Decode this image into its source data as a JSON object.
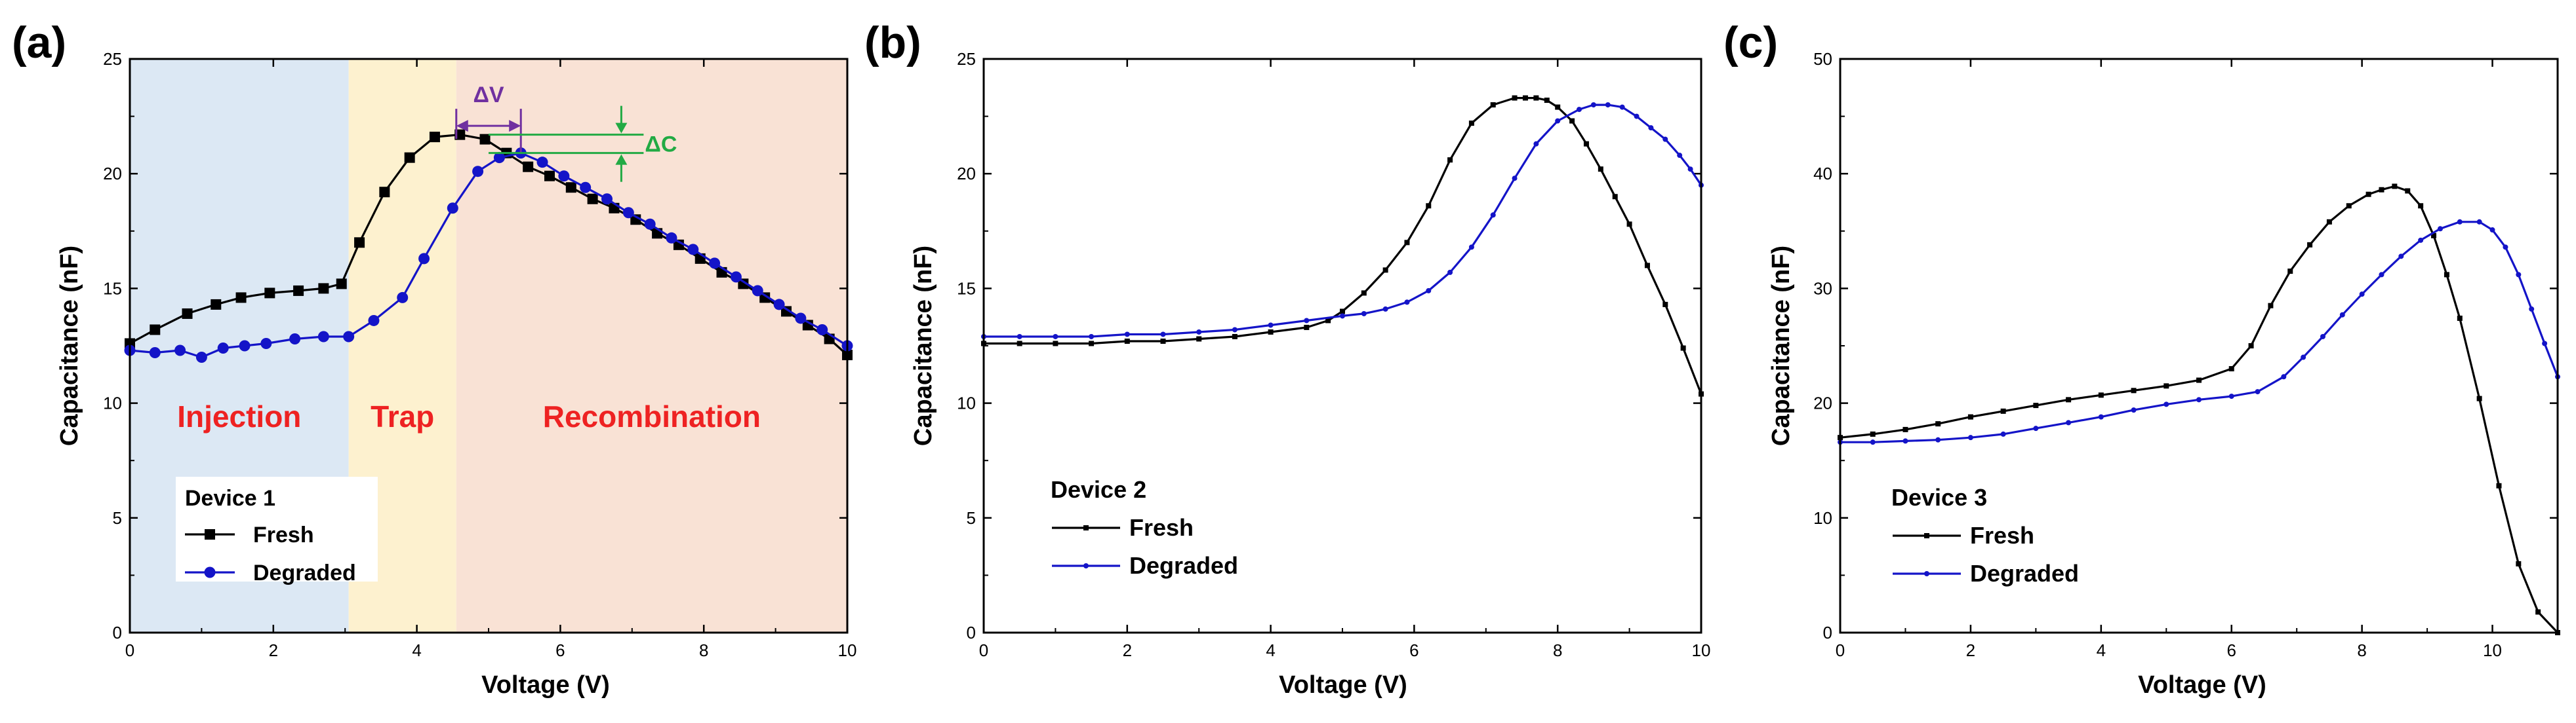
{
  "colors": {
    "fresh": "#000000",
    "degraded": "#1414c8",
    "injection_region": "#dce8f4",
    "trap_region": "#fdf1cf",
    "recombination_region": "#f9e2d5",
    "region_text": "#ee2222",
    "delta_v": "#7030a0",
    "delta_c": "#22aa44"
  },
  "chart_data": [
    {
      "panel": "(a)",
      "type": "line",
      "xlabel": "Voltage (V)",
      "ylabel": "Capacitance (nF)",
      "xlim": [
        0,
        10
      ],
      "ylim": [
        0,
        25
      ],
      "xticks": [
        0,
        2,
        4,
        6,
        8,
        10
      ],
      "yticks": [
        0,
        5,
        10,
        15,
        20,
        25
      ],
      "legend_title": "Device 1",
      "legend_position": "bottom-left",
      "regions": [
        {
          "label": "Injection",
          "x_start": 0,
          "x_end": 3.05
        },
        {
          "label": "Trap",
          "x_start": 3.05,
          "x_end": 4.55
        },
        {
          "label": "Recombination",
          "x_start": 4.55,
          "x_end": 10
        }
      ],
      "annotations": [
        {
          "label": "ΔV",
          "x_start": 4.55,
          "x_end": 5.45,
          "y": 22.2
        },
        {
          "label": "ΔC",
          "x": 6.85,
          "y_start": 20.9,
          "y_end": 21.7
        }
      ],
      "series": [
        {
          "name": "Fresh",
          "marker": "square",
          "x": [
            0,
            0.35,
            0.8,
            1.2,
            1.55,
            1.95,
            2.35,
            2.7,
            2.95,
            3.2,
            3.55,
            3.9,
            4.25,
            4.6,
            4.95,
            5.25,
            5.55,
            5.85,
            6.15,
            6.45,
            6.75,
            7.05,
            7.35,
            7.65,
            7.95,
            8.25,
            8.55,
            8.85,
            9.15,
            9.45,
            9.75,
            10
          ],
          "y": [
            12.6,
            13.2,
            13.9,
            14.3,
            14.6,
            14.8,
            14.9,
            15.0,
            15.2,
            17.0,
            19.2,
            20.7,
            21.6,
            21.7,
            21.5,
            20.9,
            20.3,
            19.9,
            19.4,
            18.9,
            18.5,
            18.0,
            17.4,
            16.9,
            16.3,
            15.7,
            15.2,
            14.6,
            14.0,
            13.4,
            12.8,
            12.1
          ]
        },
        {
          "name": "Degraded",
          "marker": "circle",
          "x": [
            0,
            0.35,
            0.7,
            1.0,
            1.3,
            1.6,
            1.9,
            2.3,
            2.7,
            3.05,
            3.4,
            3.8,
            4.1,
            4.5,
            4.85,
            5.15,
            5.45,
            5.75,
            6.05,
            6.35,
            6.65,
            6.95,
            7.25,
            7.55,
            7.85,
            8.15,
            8.45,
            8.75,
            9.05,
            9.35,
            9.65,
            10
          ],
          "y": [
            12.3,
            12.2,
            12.3,
            12.0,
            12.4,
            12.5,
            12.6,
            12.8,
            12.9,
            12.9,
            13.6,
            14.6,
            16.3,
            18.5,
            20.1,
            20.7,
            20.9,
            20.5,
            19.9,
            19.4,
            18.9,
            18.3,
            17.8,
            17.2,
            16.7,
            16.1,
            15.5,
            14.9,
            14.3,
            13.7,
            13.2,
            12.5
          ]
        }
      ]
    },
    {
      "panel": "(b)",
      "type": "line",
      "xlabel": "Voltage (V)",
      "ylabel": "Capacitance (nF)",
      "xlim": [
        0,
        10
      ],
      "ylim": [
        0,
        25
      ],
      "xticks": [
        0,
        2,
        4,
        6,
        8,
        10
      ],
      "yticks": [
        0,
        5,
        10,
        15,
        20,
        25
      ],
      "legend_title": "Device 2",
      "legend_position": "bottom-left",
      "series": [
        {
          "name": "Fresh",
          "marker": "small-square",
          "x": [
            0,
            0.5,
            1.0,
            1.5,
            2.0,
            2.5,
            3.0,
            3.5,
            4.0,
            4.5,
            4.8,
            5.0,
            5.3,
            5.6,
            5.9,
            6.2,
            6.5,
            6.8,
            7.1,
            7.4,
            7.55,
            7.7,
            7.85,
            8.0,
            8.2,
            8.4,
            8.6,
            8.8,
            9.0,
            9.25,
            9.5,
            9.75,
            10
          ],
          "y": [
            12.6,
            12.6,
            12.6,
            12.6,
            12.7,
            12.7,
            12.8,
            12.9,
            13.1,
            13.3,
            13.6,
            14.0,
            14.8,
            15.8,
            17.0,
            18.6,
            20.6,
            22.2,
            23.0,
            23.3,
            23.3,
            23.3,
            23.2,
            22.9,
            22.3,
            21.3,
            20.2,
            19.0,
            17.8,
            16.0,
            14.3,
            12.4,
            10.4
          ]
        },
        {
          "name": "Degraded",
          "marker": "small-circle",
          "x": [
            0,
            0.5,
            1.0,
            1.5,
            2.0,
            2.5,
            3.0,
            3.5,
            4.0,
            4.5,
            5.0,
            5.3,
            5.6,
            5.9,
            6.2,
            6.5,
            6.8,
            7.1,
            7.4,
            7.7,
            8.0,
            8.3,
            8.5,
            8.7,
            8.9,
            9.1,
            9.3,
            9.5,
            9.7,
            9.85,
            10
          ],
          "y": [
            12.9,
            12.9,
            12.9,
            12.9,
            13.0,
            13.0,
            13.1,
            13.2,
            13.4,
            13.6,
            13.8,
            13.9,
            14.1,
            14.4,
            14.9,
            15.7,
            16.8,
            18.2,
            19.8,
            21.3,
            22.3,
            22.8,
            23.0,
            23.0,
            22.9,
            22.5,
            22.0,
            21.5,
            20.8,
            20.2,
            19.5
          ]
        }
      ]
    },
    {
      "panel": "(c)",
      "type": "line",
      "xlabel": "Voltage (V)",
      "ylabel": "Capacitance (nF)",
      "xlim": [
        0,
        11
      ],
      "ylim": [
        0,
        50
      ],
      "xticks": [
        0,
        2,
        4,
        6,
        8,
        10
      ],
      "yticks": [
        0,
        10,
        20,
        30,
        40,
        50
      ],
      "legend_title": "Device 3",
      "legend_position": "bottom-left",
      "series": [
        {
          "name": "Fresh",
          "marker": "small-square",
          "x": [
            0,
            0.5,
            1.0,
            1.5,
            2.0,
            2.5,
            3.0,
            3.5,
            4.0,
            4.5,
            5.0,
            5.5,
            6.0,
            6.3,
            6.6,
            6.9,
            7.2,
            7.5,
            7.8,
            8.1,
            8.3,
            8.5,
            8.7,
            8.9,
            9.1,
            9.3,
            9.5,
            9.8,
            10.1,
            10.4,
            10.7,
            11.0
          ],
          "y": [
            17.0,
            17.3,
            17.7,
            18.2,
            18.8,
            19.3,
            19.8,
            20.3,
            20.7,
            21.1,
            21.5,
            22.0,
            23.0,
            25.0,
            28.5,
            31.5,
            33.8,
            35.8,
            37.2,
            38.2,
            38.6,
            38.9,
            38.5,
            37.2,
            34.6,
            31.2,
            27.4,
            20.4,
            12.8,
            6.0,
            1.8,
            0.0
          ]
        },
        {
          "name": "Degraded",
          "marker": "small-circle",
          "x": [
            0,
            0.5,
            1.0,
            1.5,
            2.0,
            2.5,
            3.0,
            3.5,
            4.0,
            4.5,
            5.0,
            5.5,
            6.0,
            6.4,
            6.8,
            7.1,
            7.4,
            7.7,
            8.0,
            8.3,
            8.6,
            8.9,
            9.2,
            9.5,
            9.8,
            10.0,
            10.2,
            10.4,
            10.6,
            10.8,
            11.0
          ],
          "y": [
            16.6,
            16.6,
            16.7,
            16.8,
            17.0,
            17.3,
            17.8,
            18.3,
            18.8,
            19.4,
            19.9,
            20.3,
            20.6,
            21.0,
            22.3,
            24.0,
            25.8,
            27.7,
            29.5,
            31.2,
            32.8,
            34.2,
            35.2,
            35.8,
            35.8,
            35.1,
            33.6,
            31.2,
            28.2,
            25.2,
            22.3
          ]
        }
      ]
    }
  ]
}
